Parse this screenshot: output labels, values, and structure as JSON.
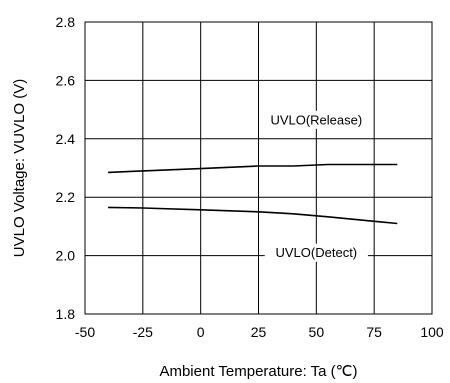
{
  "chart_data": {
    "type": "line",
    "title": "",
    "xlabel": "Ambient Temperature: Ta (℃)",
    "ylabel": "UVLO Voltage: VUVLO (V)",
    "xlim": [
      -50,
      100
    ],
    "ylim": [
      1.8,
      2.8
    ],
    "xticks": [
      -50,
      -25,
      0,
      25,
      50,
      75,
      100
    ],
    "yticks": [
      1.8,
      2.0,
      2.2,
      2.4,
      2.6,
      2.8
    ],
    "xtick_labels": [
      "-50",
      "-25",
      "0",
      "25",
      "50",
      "75",
      "100"
    ],
    "ytick_labels": [
      "1.8",
      "2.0",
      "2.2",
      "2.4",
      "2.6",
      "2.8"
    ],
    "grid": true,
    "legend": "none",
    "series": [
      {
        "name": "UVLO(Release)",
        "x": [
          -40,
          -25,
          0,
          25,
          40,
          55,
          85
        ],
        "y": [
          2.285,
          2.29,
          2.298,
          2.307,
          2.307,
          2.312,
          2.312
        ]
      },
      {
        "name": "UVLO(Detect)",
        "x": [
          -40,
          -25,
          0,
          25,
          40,
          55,
          85
        ],
        "y": [
          2.165,
          2.163,
          2.157,
          2.15,
          2.143,
          2.133,
          2.11
        ]
      }
    ],
    "annotations": [
      {
        "text": "UVLO(Release)",
        "x": 50,
        "y": 2.465
      },
      {
        "text": "UVLO(Detect)",
        "x": 50,
        "y": 2.01
      }
    ]
  }
}
